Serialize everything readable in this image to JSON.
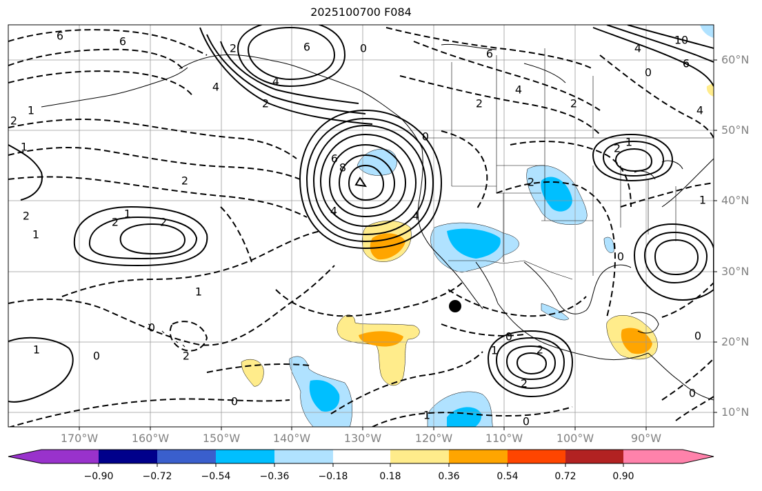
{
  "title": "2025100700 F084",
  "latitude_labels": [
    "60°N",
    "50°N",
    "40°N",
    "30°N",
    "20°N",
    "10°N"
  ],
  "longitude_labels": [
    "170°W",
    "160°W",
    "150°W",
    "140°W",
    "130°W",
    "120°W",
    "110°W",
    "100°W",
    "90°W"
  ],
  "colorbar": {
    "colors": [
      "#9932cc",
      "#00008b",
      "#3a5fcd",
      "#00bfff",
      "#b0e2ff",
      "#ffffff",
      "#ffec8b",
      "#ffa500",
      "#ff4500",
      "#b22222",
      "#ff82ab"
    ],
    "labels": [
      "−0.90",
      "−0.72",
      "−0.54",
      "−0.36",
      "−0.18",
      "0.18",
      "0.36",
      "0.54",
      "0.72",
      "0.90"
    ]
  },
  "contour_labels": [
    "6",
    "6",
    "6",
    "6",
    "4",
    "2",
    "0",
    "2",
    "2",
    "1",
    "1",
    "4",
    "2",
    "4",
    "6",
    "6",
    "4",
    "2",
    "2",
    "8",
    "4",
    "0",
    "1",
    "1",
    "2",
    "2",
    "4",
    "6",
    "10",
    "4",
    "0",
    "2",
    "2",
    "1",
    "0",
    "1",
    "1",
    "2",
    "0",
    "2",
    "1",
    "0",
    "0",
    "2",
    "0",
    "1",
    "2",
    "0",
    "1",
    "0",
    "0"
  ],
  "marker": "storm-center-dot"
}
